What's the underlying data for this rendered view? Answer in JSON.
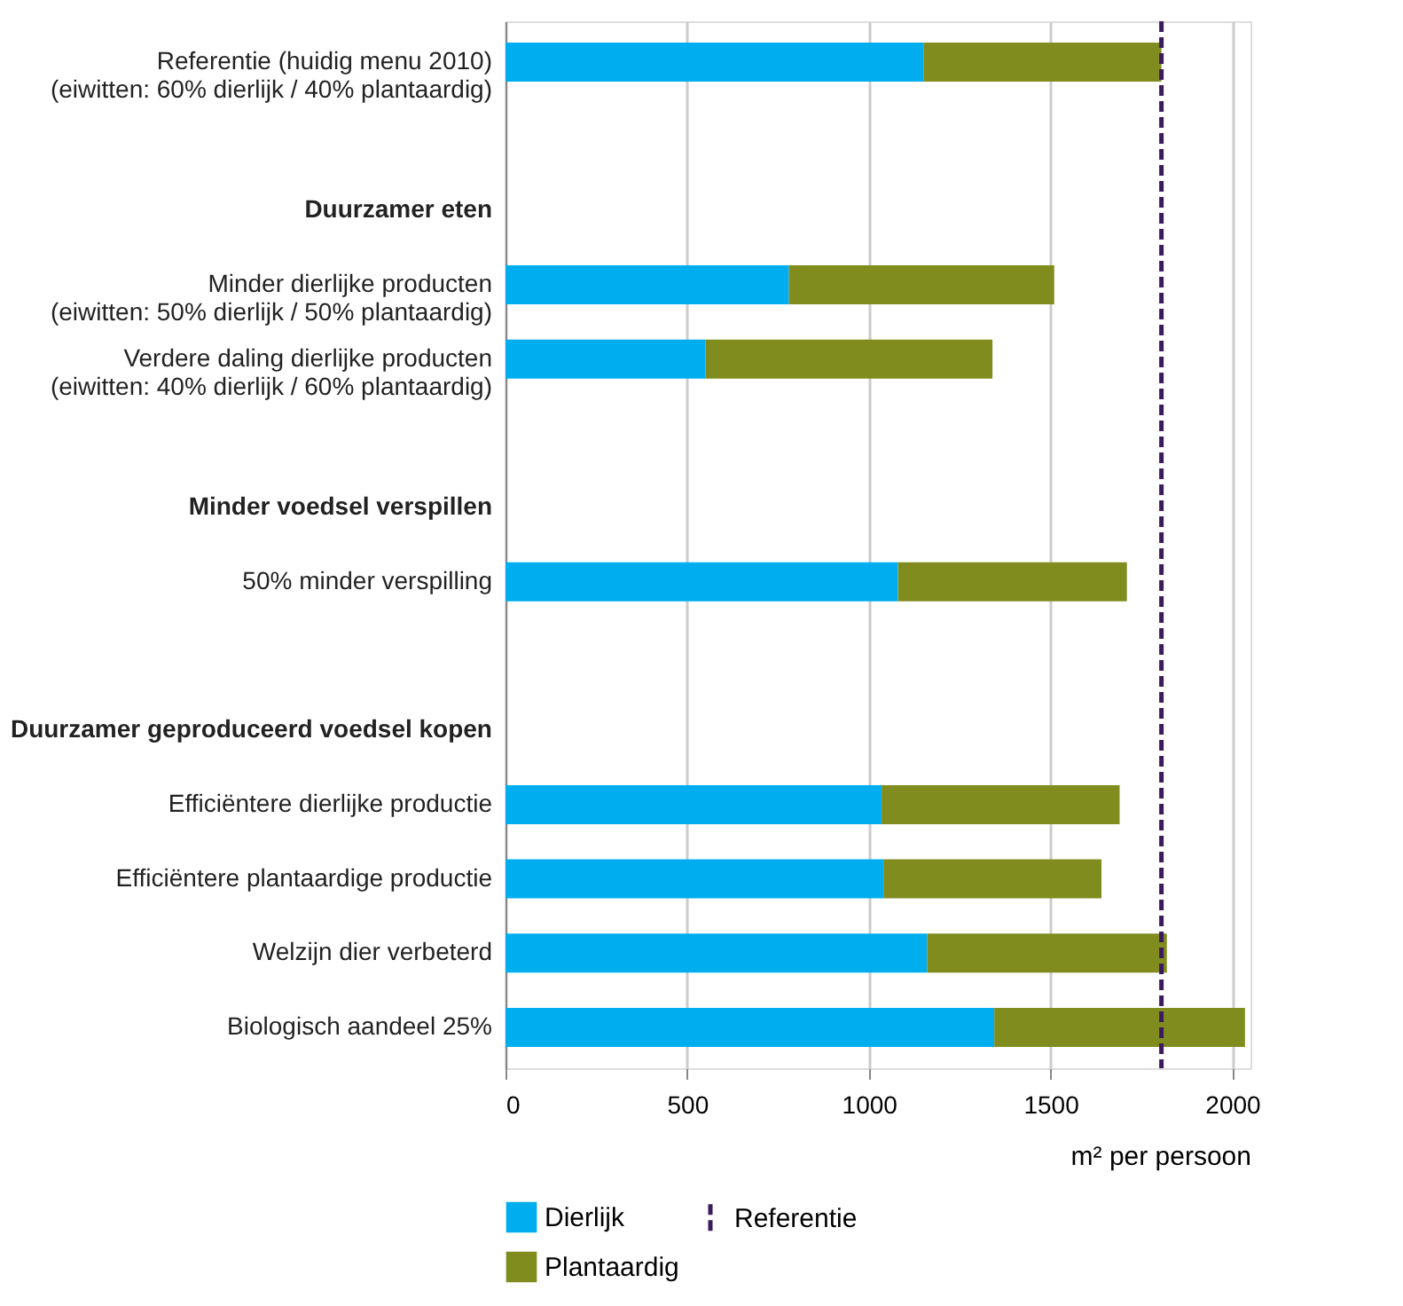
{
  "chart_data": {
    "type": "bar",
    "orientation": "horizontal",
    "stacked": true,
    "categories": [
      "Referentie (huidig menu 2010)\n(eiwitten: 60% dierlijk / 40% plantaardig)",
      null,
      "Duurzamer eten",
      "Minder dierlijke producten\n(eiwitten: 50% dierlijk / 50% plantaardig)",
      "Verdere daling dierlijke producten\n(eiwitten: 40% dierlijk / 60% plantaardig)",
      null,
      "Minder voedsel verspillen",
      "50% minder verspilling",
      null,
      "Duurzamer geproduceerd voedsel kopen",
      "Efficiëntere dierlijke productie",
      "Efficiëntere plantaardige productie",
      "Welzijn dier verbeterd",
      "Biologisch aandeel 25%"
    ],
    "series": [
      {
        "name": "Dierlijk",
        "color": "#00aeef",
        "values": [
          1150,
          null,
          null,
          780,
          550,
          null,
          null,
          1080,
          null,
          null,
          1035,
          1040,
          1160,
          1345
        ]
      },
      {
        "name": "Plantaardig",
        "color": "#818c1f",
        "values": [
          655,
          null,
          null,
          730,
          790,
          null,
          null,
          630,
          null,
          null,
          655,
          600,
          660,
          690
        ]
      }
    ],
    "xlim": [
      0,
      2050
    ],
    "xticks": [
      0,
      500,
      1000,
      1500,
      2000
    ],
    "xlabel": "m² per persoon",
    "grid": "x",
    "legend": "bottom left",
    "ref_lines": [
      {
        "axis": "x",
        "value": 1805,
        "label": "Referentie",
        "color": "#3b1a5e",
        "line_style": "dashed"
      }
    ]
  }
}
